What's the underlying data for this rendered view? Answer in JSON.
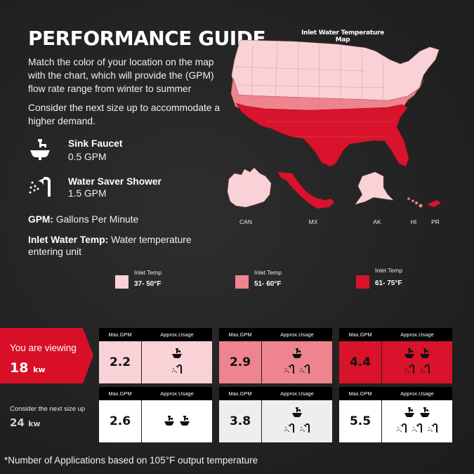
{
  "title": "PERFORMANCE GUIDE",
  "intro": "Match the color of your location on the map with the chart, which will provide the (GPM) flow rate range from winter to summer",
  "next_size_note": "Consider the next size up to accommodate a higher demand.",
  "applications": [
    {
      "name": "Sink Faucet",
      "flow": "0.5 GPM",
      "icon": "sink-faucet-icon"
    },
    {
      "name": "Water Saver Shower",
      "flow": "1.5 GPM",
      "icon": "shower-head-icon"
    }
  ],
  "definitions": [
    {
      "term": "GPM:",
      "text": "Gallons Per Minute"
    },
    {
      "term": "Inlet Water Temp:",
      "text": "Water temperature entering unit"
    }
  ],
  "map": {
    "title": "Inlet Water Temperature Map",
    "labels": [
      "CAN",
      "MX",
      "AK",
      "HI",
      "PR"
    ]
  },
  "colors": {
    "cold": "#f8d2d6",
    "mid": "#ed848e",
    "warm": "#d9132b",
    "accent": "#d90f27"
  },
  "legend": [
    {
      "label": "Inlet Temp",
      "range": "37- 50°F",
      "color": "#f8d2d6"
    },
    {
      "label": "Inlet Temp",
      "range": "51- 60°F",
      "color": "#ed848e"
    },
    {
      "label": "Inlet Temp",
      "range": "61- 75°F",
      "color": "#d9132b"
    }
  ],
  "viewing": {
    "label": "You are viewing",
    "kw": "18",
    "unit": "kw"
  },
  "next": {
    "label": "Consider the next size up",
    "kw": "24",
    "unit": "kw"
  },
  "card_headers": {
    "gpm": "Max.GPM",
    "usage": "Approx.Usage"
  },
  "rows": [
    [
      {
        "gpm": "2.2",
        "sinks": 1,
        "showers": 1
      },
      {
        "gpm": "2.9",
        "sinks": 1,
        "showers": 2
      },
      {
        "gpm": "4.4",
        "sinks": 2,
        "showers": 2
      }
    ],
    [
      {
        "gpm": "2.6",
        "sinks": 2,
        "showers": 0
      },
      {
        "gpm": "3.8",
        "sinks": 1,
        "showers": 2
      },
      {
        "gpm": "5.5",
        "sinks": 2,
        "showers": 3
      }
    ]
  ],
  "footnote": "*Number of Applications based on 105°F output temperature"
}
